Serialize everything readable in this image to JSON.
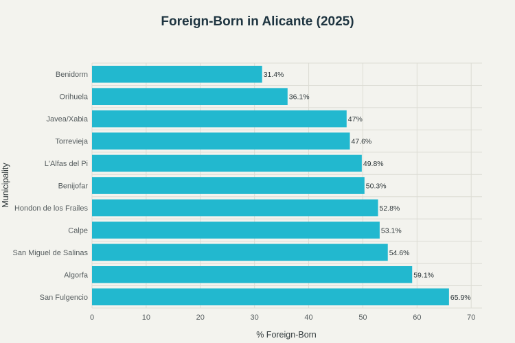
{
  "chart_data": {
    "type": "bar",
    "orientation": "horizontal",
    "title": "Foreign-Born in Alicante (2025)",
    "xlabel": "% Foreign-Born",
    "ylabel": "Municipality",
    "xlim": [
      0,
      72
    ],
    "xticks": [
      0,
      10,
      20,
      30,
      40,
      50,
      60,
      70
    ],
    "grid": true,
    "categories": [
      "Benidorm",
      "Orihuela",
      "Javea/Xabia",
      "Torrevieja",
      "L'Alfas del Pi",
      "Benijofar",
      "Hondon de los Frailes",
      "Calpe",
      "San Miguel de Salinas",
      "Algorfa",
      "San Fulgencio"
    ],
    "values": [
      31.4,
      36.1,
      47,
      47.6,
      49.8,
      50.3,
      52.8,
      53.1,
      54.6,
      59.1,
      65.9
    ],
    "data_labels": [
      "31.4%",
      "36.1%",
      "47%",
      "47.6%",
      "49.8%",
      "50.3%",
      "52.8%",
      "53.1%",
      "54.6%",
      "59.1%",
      "65.9%"
    ],
    "bar_color": "#22b8cf"
  }
}
